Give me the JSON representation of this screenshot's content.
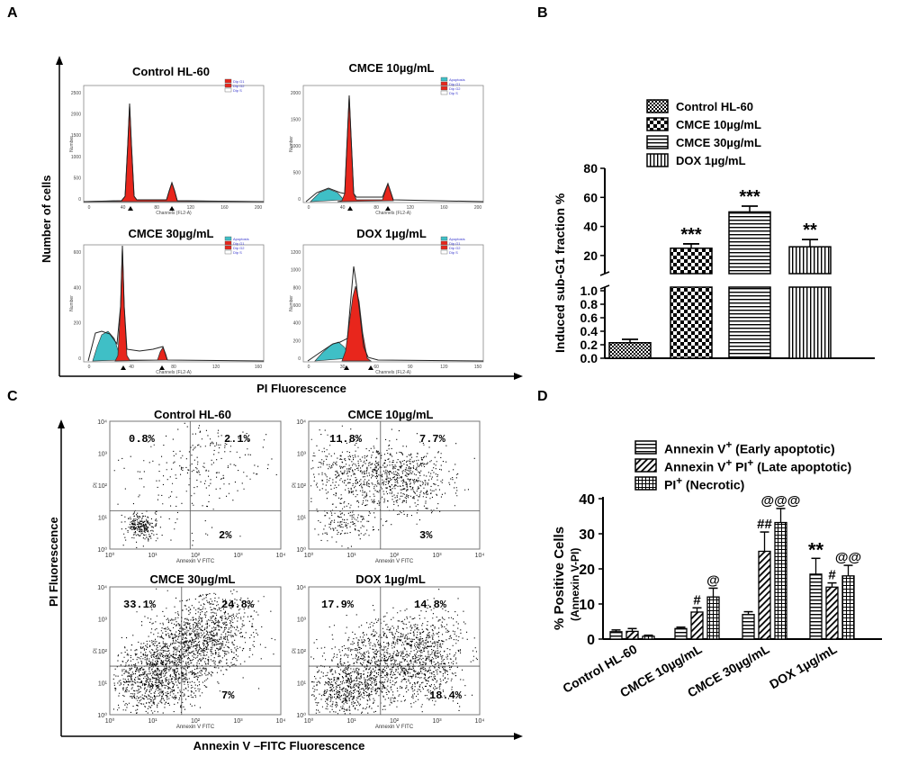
{
  "panels": {
    "a": "A",
    "b": "B",
    "c": "C",
    "d": "D"
  },
  "panel_a": {
    "x_axis_title": "PI Fluorescence",
    "y_axis_title": "Number of cells",
    "histograms": [
      {
        "title": "Control HL-60",
        "x_label": "Channels (FL2-A)",
        "y_label": "Number",
        "x_ticks": [
          "0",
          "40",
          "80",
          "120",
          "160",
          "200"
        ],
        "y_ticks": [
          "0",
          "500",
          "1000",
          "1500",
          "2000",
          "2500"
        ],
        "legend": [
          "Dip G1",
          "Dip G2",
          "Dip S"
        ]
      },
      {
        "title": "CMCE 10µg/mL",
        "x_label": "Channels (FL2-A)",
        "y_label": "Number",
        "x_ticks": [
          "0",
          "40",
          "80",
          "120",
          "160",
          "200"
        ],
        "y_ticks": [
          "0",
          "500",
          "1000",
          "1500",
          "2000"
        ],
        "legend": [
          "Apoptosis",
          "Dip G1",
          "Dip G2",
          "Dip S"
        ]
      },
      {
        "title": "CMCE 30µg/mL",
        "x_label": "Channels (FL2-A)",
        "y_label": "Number",
        "x_ticks": [
          "0",
          "40",
          "80",
          "120",
          "160"
        ],
        "y_ticks": [
          "0",
          "200",
          "400",
          "600"
        ],
        "legend": [
          "Apoptosis",
          "Dip G1",
          "Dip G2",
          "Dip S"
        ]
      },
      {
        "title": "DOX 1µg/mL",
        "x_label": "Channels (FL2-A)",
        "y_label": "Number",
        "x_ticks": [
          "0",
          "30",
          "60",
          "90",
          "120",
          "150"
        ],
        "y_ticks": [
          "0",
          "200",
          "400",
          "600",
          "800",
          "1000",
          "1200"
        ],
        "legend": [
          "Apoptosis",
          "Dip G1",
          "Dip G2",
          "Dip S"
        ]
      }
    ]
  },
  "panel_c": {
    "x_axis_title": "Annexin V –FITC Fluorescence",
    "y_axis_title": "PI Fluorescence",
    "plots": [
      {
        "title": "Control HL-60",
        "q_ul": "0.8%",
        "q_ur": "2.1%",
        "q_lr": "2%",
        "x_label": "Annexin V FITC",
        "y_label": "PI"
      },
      {
        "title": "CMCE 10µg/mL",
        "q_ul": "11.8%",
        "q_ur": "7.7%",
        "q_lr": "3%",
        "x_label": "Annexin V FITC",
        "y_label": "PI"
      },
      {
        "title": "CMCE 30µg/mL",
        "q_ul": "33.1%",
        "q_ur": "24.8%",
        "q_lr": "7%",
        "x_label": "Annexin V FITC",
        "y_label": "PI"
      },
      {
        "title": "DOX 1µg/mL",
        "q_ul": "17.9%",
        "q_ur": "14.8%",
        "q_lr": "18.4%",
        "x_label": "Annexin V FITC",
        "y_label": "PI"
      }
    ],
    "ticks": [
      "10⁰",
      "10¹",
      "10²",
      "10³",
      "10⁴"
    ]
  },
  "chart_data": [
    {
      "type": "bar",
      "panel": "B",
      "ylabel": "Induced sub-G1 fraction %",
      "categories": [
        "Control HL-60",
        "CMCE 10µg/mL",
        "CMCE 30µg/mL",
        "DOX 1µg/mL"
      ],
      "values": [
        0.23,
        25,
        50,
        26
      ],
      "errors": [
        0.05,
        3,
        4,
        5
      ],
      "annotations": [
        "",
        "***",
        "***",
        "**"
      ],
      "legend": [
        "Control HL-60",
        "CMCE 10µg/mL",
        "CMCE 30µg/mL",
        "DOX 1µg/mL"
      ],
      "y_lower_ticks": [
        "0.0",
        "0.2",
        "0.4",
        "0.6",
        "0.8",
        "1.0"
      ],
      "y_upper_ticks": [
        "20",
        "40",
        "60",
        "80"
      ],
      "y_lower_range": [
        0,
        1.0
      ],
      "y_upper_range": [
        10,
        80
      ]
    },
    {
      "type": "bar",
      "panel": "D",
      "ylabel": "% Positive Cells",
      "ylabel2": "(Annexin V-PI)",
      "categories": [
        "Control HL-60",
        "CMCE 10µg/mL",
        "CMCE 30µg/mL",
        "DOX 1µg/mL"
      ],
      "series": [
        {
          "name": "Annexin V+ (Early apoptotic)",
          "values": [
            2.1,
            3.0,
            7.0,
            18.5
          ],
          "errors": [
            0.5,
            0.4,
            0.8,
            4.5
          ],
          "annotations": [
            "",
            "",
            "",
            "**"
          ]
        },
        {
          "name": "Annexin V+ PI+ (Late apoptotic)",
          "values": [
            2.2,
            7.7,
            25.0,
            14.8
          ],
          "errors": [
            0.8,
            1.2,
            5.5,
            1.2
          ],
          "annotations": [
            "",
            "#",
            "##",
            "#"
          ]
        },
        {
          "name": "PI+ (Necrotic)",
          "values": [
            0.8,
            12.0,
            33.2,
            18.0
          ],
          "errors": [
            0.3,
            2.5,
            4.0,
            3.0
          ],
          "annotations": [
            "",
            "@",
            "@@@",
            "@@"
          ]
        }
      ],
      "legend_parts": [
        {
          "base": "Annexin V",
          "sup": "+",
          "rest": " (Early apoptotic)"
        },
        {
          "base": "Annexin V",
          "sup": "+",
          "mid": " PI",
          "sup2": "+",
          "rest": " (Late apoptotic)"
        },
        {
          "base": "PI",
          "sup": "+",
          "rest": " (Necrotic)"
        }
      ],
      "y_ticks": [
        "0",
        "10",
        "20",
        "30",
        "40"
      ],
      "ylim": [
        0,
        40
      ]
    }
  ]
}
